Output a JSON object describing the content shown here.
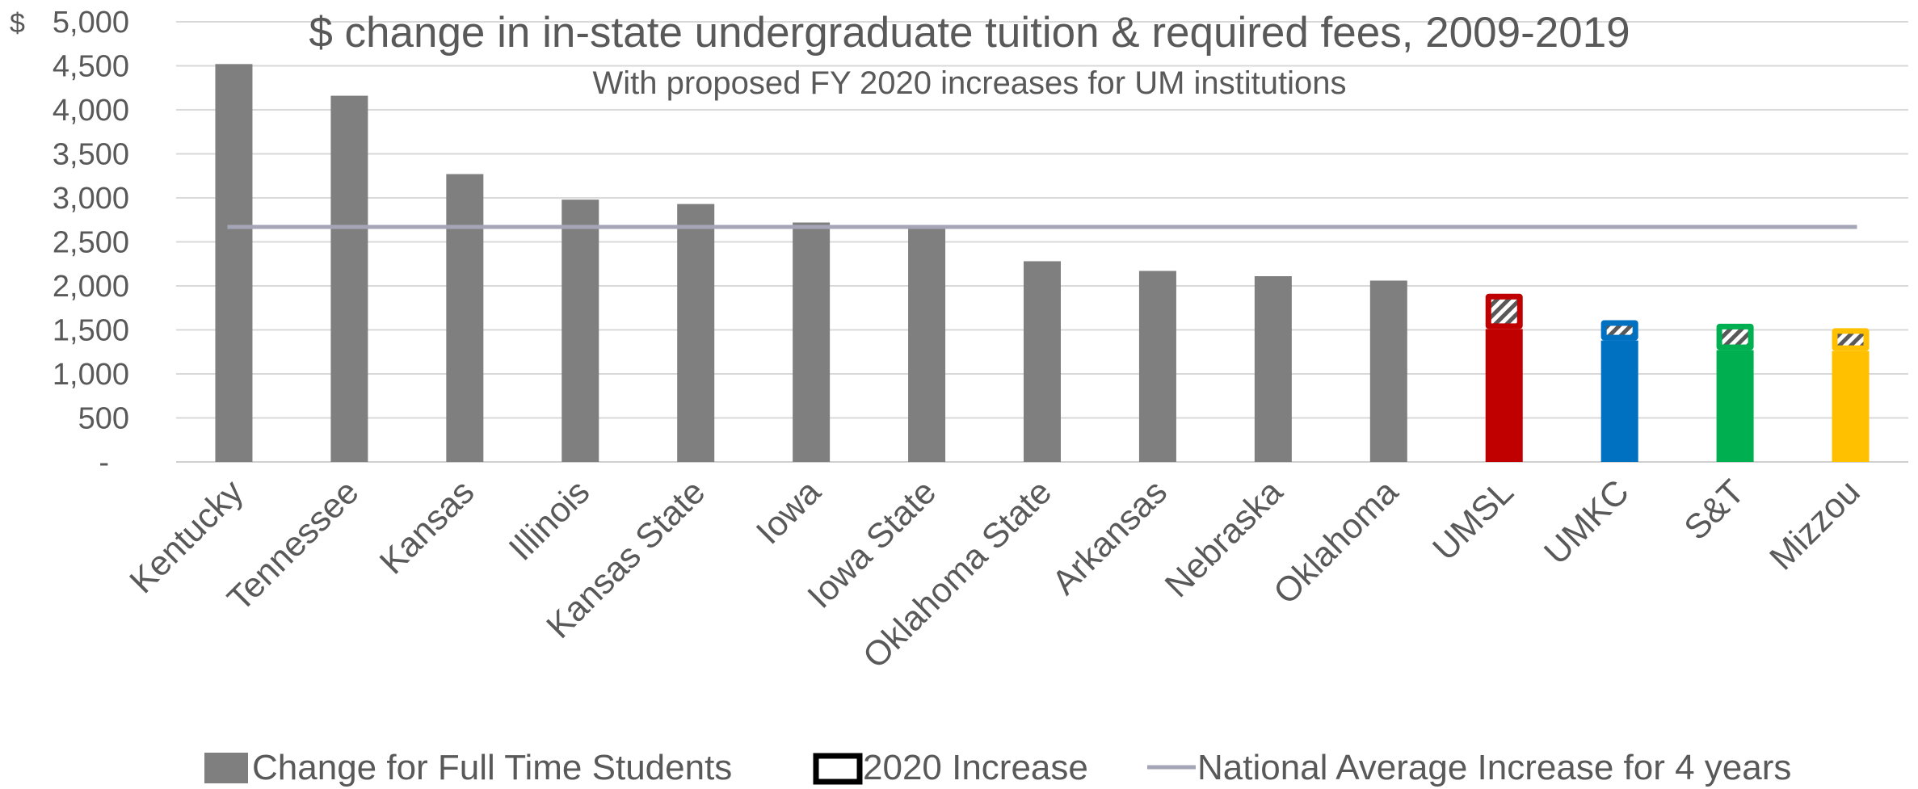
{
  "chart_data": {
    "type": "bar",
    "title": "$ change in in-state undergraduate tuition & required fees, 2009-2019",
    "subtitle": "With proposed FY 2020 increases for UM institutions",
    "ylim": [
      0,
      5000
    ],
    "y_currency_symbol": "$",
    "yticks": [
      {
        "value": 0,
        "label": "-"
      },
      {
        "value": 500,
        "label": "500"
      },
      {
        "value": 1000,
        "label": "1,000"
      },
      {
        "value": 1500,
        "label": "1,500"
      },
      {
        "value": 2000,
        "label": "2,000"
      },
      {
        "value": 2500,
        "label": "2,500"
      },
      {
        "value": 3000,
        "label": "3,000"
      },
      {
        "value": 3500,
        "label": "3,500"
      },
      {
        "value": 4000,
        "label": "4,000"
      },
      {
        "value": 4500,
        "label": "4,500"
      },
      {
        "value": 5000,
        "label": "5,000"
      }
    ],
    "grid": true,
    "legend_position": "bottom",
    "categories": [
      "Kentucky",
      "Tennessee",
      "Kansas",
      "Illinois",
      "Kansas State",
      "Iowa",
      "Iowa State",
      "Oklahoma State",
      "Arkansas",
      "Nebraska",
      "Oklahoma",
      "UMSL",
      "UMKC",
      "S&T",
      "Mizzou"
    ],
    "series": [
      {
        "name": "Change for Full Time Students",
        "values": [
          4520,
          4160,
          3270,
          2980,
          2930,
          2720,
          2670,
          2280,
          2170,
          2110,
          2060,
          1510,
          1380,
          1270,
          1260
        ],
        "colors": [
          "#7f7f7f",
          "#7f7f7f",
          "#7f7f7f",
          "#7f7f7f",
          "#7f7f7f",
          "#7f7f7f",
          "#7f7f7f",
          "#7f7f7f",
          "#7f7f7f",
          "#7f7f7f",
          "#7f7f7f",
          "#c00000",
          "#0070c0",
          "#00b050",
          "#ffc000"
        ]
      },
      {
        "name": "2020 Increase",
        "values": [
          0,
          0,
          0,
          0,
          0,
          0,
          0,
          0,
          0,
          0,
          0,
          400,
          230,
          300,
          260
        ],
        "colors": [
          "#000000",
          "#000000",
          "#000000",
          "#000000",
          "#000000",
          "#000000",
          "#000000",
          "#000000",
          "#000000",
          "#000000",
          "#000000",
          "#c00000",
          "#0070c0",
          "#00b050",
          "#ffc000"
        ],
        "style": "hatched"
      },
      {
        "name": "National Average Increase for 4 years",
        "type": "line",
        "value": 2670,
        "color": "#a5a5b8"
      }
    ]
  }
}
